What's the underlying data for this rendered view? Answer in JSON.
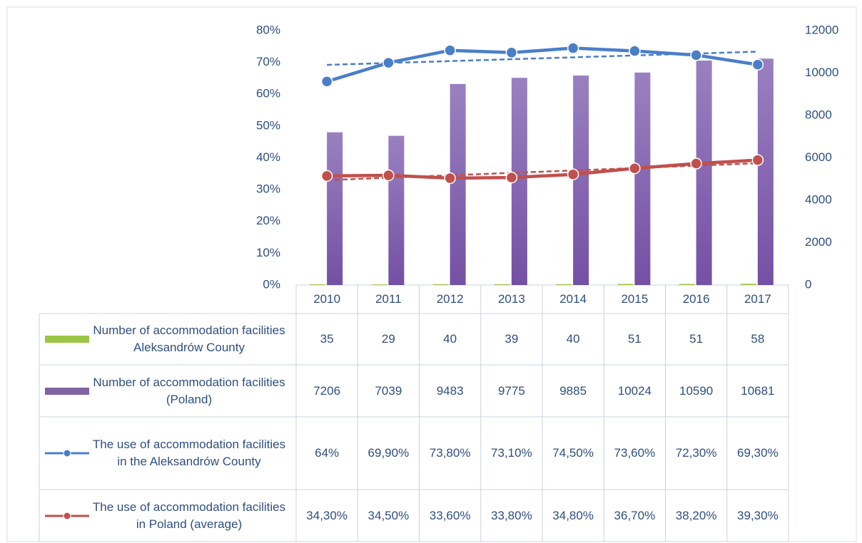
{
  "chart_data": {
    "type": "bar",
    "categories": [
      "2010",
      "2011",
      "2012",
      "2013",
      "2014",
      "2015",
      "2016",
      "2017"
    ],
    "ylim": [
      0,
      80
    ],
    "yticks": [
      {
        "value": 0,
        "label": "0%"
      },
      {
        "value": 10,
        "label": "10%"
      },
      {
        "value": 20,
        "label": "20%"
      },
      {
        "value": 30,
        "label": "30%"
      },
      {
        "value": 40,
        "label": "40%"
      },
      {
        "value": 50,
        "label": "50%"
      },
      {
        "value": 60,
        "label": "60%"
      },
      {
        "value": 70,
        "label": "70%"
      },
      {
        "value": 80,
        "label": "80%"
      }
    ],
    "y2lim": [
      0,
      12000
    ],
    "y2ticks": [
      0,
      2000,
      4000,
      6000,
      8000,
      10000,
      12000
    ],
    "series": [
      {
        "name": "Number of accommodation facilities Aleksandrów County",
        "type": "bar",
        "axis": "y2",
        "color": "#9bc545",
        "values": [
          35,
          29,
          40,
          39,
          40,
          51,
          51,
          58
        ]
      },
      {
        "name": "Number of accommodation facilities (Poland)",
        "type": "bar",
        "axis": "y2",
        "color": "#8064a2",
        "values": [
          7206,
          7039,
          9483,
          9775,
          9885,
          10024,
          10590,
          10681
        ]
      },
      {
        "name": "The use of accommodation facilities in the Aleksandrów County",
        "type": "line",
        "axis": "y",
        "color": "#4a7ec8",
        "trendline": "linear",
        "values": [
          64,
          69.9,
          73.8,
          73.1,
          74.5,
          73.6,
          72.3,
          69.3
        ],
        "value_labels": [
          "64%",
          "69,90%",
          "73,80%",
          "73,10%",
          "74,50%",
          "73,60%",
          "72,30%",
          "69,30%"
        ]
      },
      {
        "name": "The use of accommodation facilities in Poland (average)",
        "type": "line",
        "axis": "y",
        "color": "#c0504d",
        "trendline": "linear",
        "values": [
          34.3,
          34.5,
          33.6,
          33.8,
          34.8,
          36.7,
          38.2,
          39.3
        ],
        "value_labels": [
          "34,30%",
          "34,50%",
          "33,60%",
          "33,80%",
          "34,80%",
          "36,70%",
          "38,20%",
          "39,30%"
        ]
      }
    ]
  }
}
